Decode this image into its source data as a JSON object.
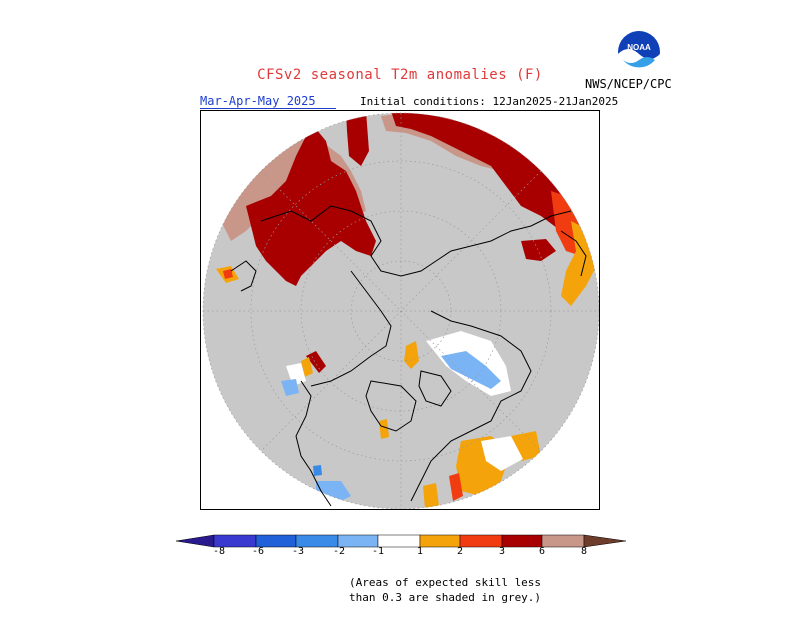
{
  "header": {
    "title": "CFSv2 seasonal T2m anomalies (F)",
    "season": "Mar-Apr-May 2025",
    "initial_conditions": "Initial conditions: 12Jan2025-21Jan2025",
    "agency": "NWS/NCEP/CPC",
    "logo_text": "NOAA"
  },
  "legend": {
    "ticks": [
      "-8",
      "-6",
      "-3",
      "-2",
      "-1",
      "1",
      "2",
      "3",
      "6",
      "8"
    ],
    "colors": {
      "lt_-8": "#2a1a8f",
      "-8_-6": "#3a3ad0",
      "-6_-3": "#2060d8",
      "-3_-2": "#3a8ae8",
      "-2_-1": "#7ab4f4",
      "neutral": "#ffffff",
      "1_2": "#f5a30a",
      "2_3": "#f03c10",
      "3_6": "#a80000",
      "6_8": "#c9968a",
      "gt_8": "#6e3c2a",
      "low_skill": "#c8c8c8"
    }
  },
  "note": {
    "line1": "(Areas of expected skill less",
    "line2": "than 0.3 are shaded in grey.)"
  }
}
